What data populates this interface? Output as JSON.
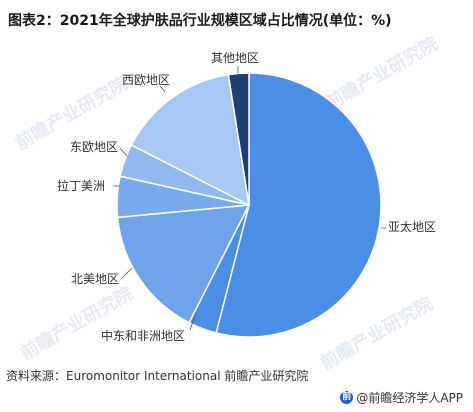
{
  "chart_data": {
    "type": "pie",
    "title": "图表2：2021年全球护肤品行业规模区域占比情况(单位：%)",
    "categories": [
      "亚太地区",
      "中东和非洲地区",
      "北美地区",
      "拉丁美洲",
      "东欧地区",
      "西欧地区",
      "其他地区"
    ],
    "values": [
      54,
      3.5,
      16,
      5,
      4,
      15,
      2.5
    ],
    "colors": [
      "#4a8ee6",
      "#4a8ee6",
      "#6fa3ea",
      "#78aaed",
      "#8fb9f0",
      "#a8c8f4",
      "#1f3f73"
    ]
  },
  "source": "资料来源：Euromonitor International 前瞻产业研究院",
  "brand": "@前瞻经济学人APP",
  "watermark": "前瞻产业研究院"
}
